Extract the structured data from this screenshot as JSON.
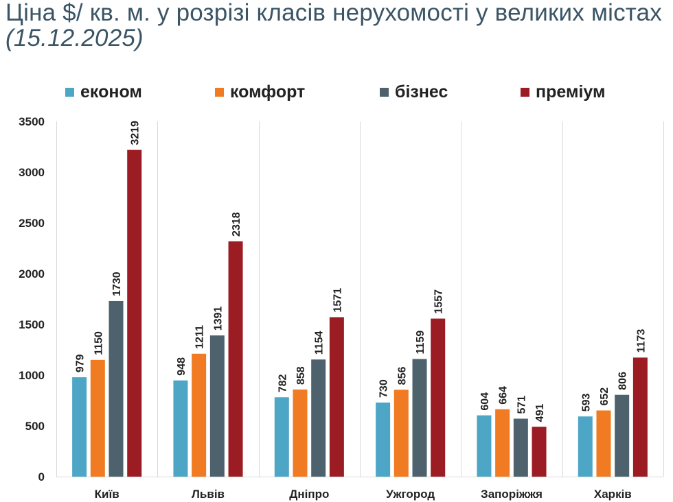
{
  "title": {
    "main": "Ціна $/ кв. м. у розрізі класів нерухомості у великих містах",
    "date": "(15.12.2025)"
  },
  "colors": {
    "економ": "#4ea6c6",
    "комфорт": "#f07b22",
    "бізнес": "#4d626c",
    "преміум": "#9b1c22",
    "grid": "#d9d9d9",
    "text": "#222222"
  },
  "chart_data": {
    "type": "bar",
    "title": "Ціна $/ кв. м. у розрізі класів нерухомості у великих містах (15.12.2025)",
    "xlabel": "",
    "ylabel": "",
    "ylim": [
      0,
      3500
    ],
    "yticks": [
      0,
      500,
      1000,
      1500,
      2000,
      2500,
      3000,
      3500
    ],
    "legend_position": "top",
    "categories": [
      "Київ",
      "Львів",
      "Дніпро",
      "Ужгород",
      "Запоріжжя",
      "Харків"
    ],
    "series": [
      {
        "name": "економ",
        "values": [
          979,
          948,
          782,
          730,
          604,
          593
        ]
      },
      {
        "name": "комфорт",
        "values": [
          1150,
          1211,
          858,
          856,
          664,
          652
        ]
      },
      {
        "name": "бізнес",
        "values": [
          1730,
          1391,
          1154,
          1159,
          571,
          806
        ]
      },
      {
        "name": "преміум",
        "values": [
          3219,
          2318,
          1571,
          1557,
          491,
          1173
        ]
      }
    ]
  }
}
